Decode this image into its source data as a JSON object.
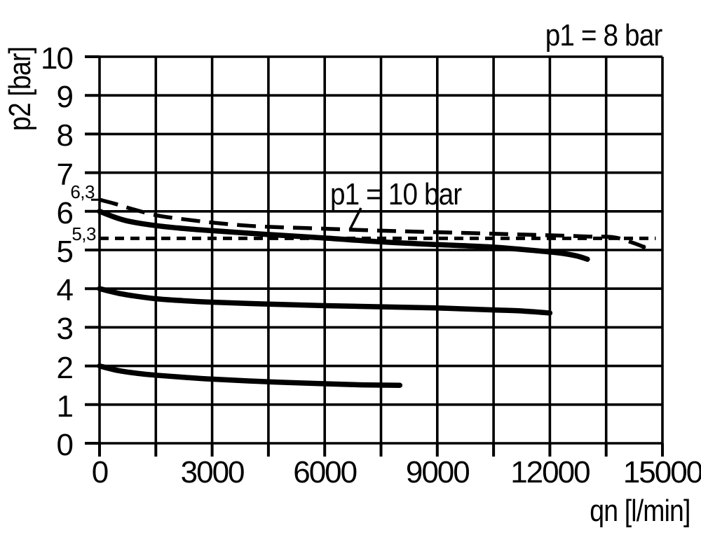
{
  "chart_data": {
    "type": "line",
    "xlabel": "qn [l/min]",
    "ylabel": "p2 [bar]",
    "xlim": [
      0,
      15000
    ],
    "ylim": [
      0,
      10
    ],
    "x_grid_step": 1500,
    "y_grid_step": 1,
    "grid": true,
    "legend": "none",
    "x_tick_values": [
      0,
      3000,
      6000,
      9000,
      12000,
      15000
    ],
    "x_tick_labels": [
      "0",
      "3000",
      "6000",
      "9000",
      "12000",
      "15000"
    ],
    "y_tick_values": [
      10,
      9,
      8,
      7,
      6,
      5,
      4,
      3,
      2,
      1,
      0
    ],
    "y_tick_labels": [
      "10",
      "9",
      "8",
      "7",
      "6",
      "5",
      "4",
      "3",
      "2",
      "1",
      "0"
    ],
    "corner_annotation": "p1 = 8 bar",
    "curve_annotation": "p1 = 10 bar",
    "extra_y_marks": [
      {
        "label": "6,3",
        "value": 6.3
      },
      {
        "label": "5,3",
        "value": 5.3
      }
    ],
    "series": [
      {
        "name": "p1-10bar-curve",
        "label": "p1 = 10 bar",
        "style": "dashed",
        "stroke_width": 5.5,
        "end_dot": true,
        "points": [
          [
            0,
            6.3
          ],
          [
            400,
            6.2
          ],
          [
            800,
            6.08
          ],
          [
            1500,
            5.9
          ],
          [
            2200,
            5.8
          ],
          [
            3000,
            5.71
          ],
          [
            3800,
            5.64
          ],
          [
            4500,
            5.6
          ],
          [
            6000,
            5.55
          ],
          [
            7500,
            5.5
          ],
          [
            9000,
            5.46
          ],
          [
            10500,
            5.42
          ],
          [
            12000,
            5.38
          ],
          [
            13000,
            5.35
          ],
          [
            13700,
            5.33
          ],
          [
            14200,
            5.19
          ],
          [
            14500,
            5.08
          ]
        ]
      },
      {
        "name": "p1-8bar-set-6bar-curve",
        "style": "solid",
        "stroke_width": 7.5,
        "points": [
          [
            0,
            6.0
          ],
          [
            400,
            5.85
          ],
          [
            800,
            5.74
          ],
          [
            1500,
            5.63
          ],
          [
            2200,
            5.56
          ],
          [
            3000,
            5.5
          ],
          [
            4500,
            5.4
          ],
          [
            6000,
            5.31
          ],
          [
            7500,
            5.21
          ],
          [
            9000,
            5.14
          ],
          [
            10400,
            5.08
          ],
          [
            11300,
            5.01
          ],
          [
            12200,
            4.93
          ],
          [
            12700,
            4.85
          ],
          [
            13000,
            4.76
          ]
        ]
      },
      {
        "name": "reference-5-3-bar-line",
        "style": "dotted",
        "stroke_width": 5,
        "points": [
          [
            0,
            5.3
          ],
          [
            14820,
            5.3
          ]
        ]
      },
      {
        "name": "set-4bar-curve",
        "style": "solid",
        "stroke_width": 7.5,
        "points": [
          [
            0,
            4.0
          ],
          [
            500,
            3.88
          ],
          [
            1000,
            3.8
          ],
          [
            1500,
            3.74
          ],
          [
            2200,
            3.69
          ],
          [
            3000,
            3.65
          ],
          [
            4500,
            3.6
          ],
          [
            6000,
            3.56
          ],
          [
            7500,
            3.53
          ],
          [
            9000,
            3.5
          ],
          [
            10500,
            3.45
          ],
          [
            11300,
            3.42
          ],
          [
            12000,
            3.37
          ]
        ]
      },
      {
        "name": "set-2bar-curve",
        "style": "solid",
        "stroke_width": 7.5,
        "points": [
          [
            0,
            2.0
          ],
          [
            500,
            1.88
          ],
          [
            1000,
            1.81
          ],
          [
            1500,
            1.76
          ],
          [
            2200,
            1.71
          ],
          [
            3000,
            1.66
          ],
          [
            4500,
            1.59
          ],
          [
            6000,
            1.54
          ],
          [
            7000,
            1.51
          ],
          [
            8000,
            1.5
          ]
        ]
      }
    ]
  },
  "colors": {
    "ink": "#000000",
    "background": "#ffffff"
  }
}
